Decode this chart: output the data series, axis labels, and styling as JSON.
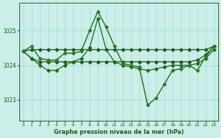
{
  "bg_color": "#cceee8",
  "plot_bg_color": "#cceee8",
  "grid_color": "#aadddd",
  "line_color_dark": "#1a5c1a",
  "xlabel": "Graphe pression niveau de la mer (hPa)",
  "xlim": [
    -0.5,
    23.5
  ],
  "ylim": [
    1022.4,
    1025.8
  ],
  "yticks": [
    1023,
    1024,
    1025
  ],
  "xticks": [
    0,
    1,
    2,
    3,
    4,
    5,
    6,
    7,
    8,
    9,
    10,
    11,
    12,
    13,
    14,
    15,
    16,
    17,
    18,
    19,
    20,
    21,
    22,
    23
  ],
  "series": [
    {
      "x": [
        0,
        1,
        2,
        3,
        4,
        5,
        6,
        7,
        8,
        9,
        10,
        11,
        12,
        13,
        14,
        15,
        16,
        17,
        18,
        19,
        20,
        21,
        22,
        23
      ],
      "y": [
        1024.4,
        1024.45,
        1024.45,
        1024.45,
        1024.45,
        1024.45,
        1024.45,
        1024.45,
        1024.45,
        1024.45,
        1024.45,
        1024.45,
        1024.45,
        1024.45,
        1024.45,
        1024.45,
        1024.45,
        1024.45,
        1024.45,
        1024.45,
        1024.45,
        1024.45,
        1024.45,
        1024.55
      ],
      "marker": "D",
      "color": "#1a5c1a",
      "linewidth": 1.0,
      "markersize": 2.5,
      "zorder": 2
    },
    {
      "x": [
        0,
        1,
        2,
        3,
        4,
        5,
        6,
        7,
        8,
        9,
        10,
        11,
        12,
        13,
        14,
        15,
        16,
        17,
        18,
        19,
        20,
        21,
        22,
        23
      ],
      "y": [
        1024.4,
        1024.2,
        1024.1,
        1024.1,
        1024.1,
        1024.1,
        1024.1,
        1024.1,
        1024.1,
        1024.1,
        1024.1,
        1024.1,
        1024.1,
        1024.1,
        1024.1,
        1024.1,
        1024.1,
        1024.1,
        1024.1,
        1024.1,
        1024.1,
        1024.15,
        1024.3,
        1024.55
      ],
      "marker": "D",
      "color": "#1a5c1a",
      "linewidth": 1.0,
      "markersize": 2.5,
      "zorder": 2
    },
    {
      "x": [
        0,
        1,
        2,
        3,
        4,
        5,
        6,
        7,
        8,
        9,
        10,
        11,
        12,
        13,
        14,
        15,
        16,
        17,
        18,
        19,
        20,
        21,
        22,
        23
      ],
      "y": [
        1024.4,
        1024.55,
        1024.2,
        1024.15,
        1024.15,
        1024.35,
        1024.35,
        1024.4,
        1025.0,
        1025.55,
        1025.1,
        1024.55,
        1024.05,
        1024.0,
        1023.95,
        1022.85,
        1023.05,
        1023.45,
        1023.85,
        1023.9,
        1024.0,
        1023.85,
        1024.25,
        1024.55
      ],
      "marker": "D",
      "color": "#2d7a2d",
      "linewidth": 1.2,
      "markersize": 2.5,
      "zorder": 4
    },
    {
      "x": [
        0,
        1,
        2,
        3,
        4,
        5,
        6,
        7,
        8,
        9,
        10,
        11,
        12,
        13,
        14,
        15,
        16,
        17,
        18,
        19,
        20,
        21,
        22,
        23
      ],
      "y": [
        1024.4,
        1024.2,
        1024.0,
        1023.85,
        1023.85,
        1024.0,
        1024.1,
        1024.2,
        1024.5,
        1025.35,
        1024.45,
        1024.1,
        1024.0,
        1023.95,
        1023.9,
        1023.85,
        1023.9,
        1023.95,
        1024.0,
        1024.0,
        1024.0,
        1024.05,
        1024.2,
        1024.45
      ],
      "marker": "D",
      "color": "#1a6e1a",
      "linewidth": 1.0,
      "markersize": 2.5,
      "zorder": 3
    }
  ]
}
